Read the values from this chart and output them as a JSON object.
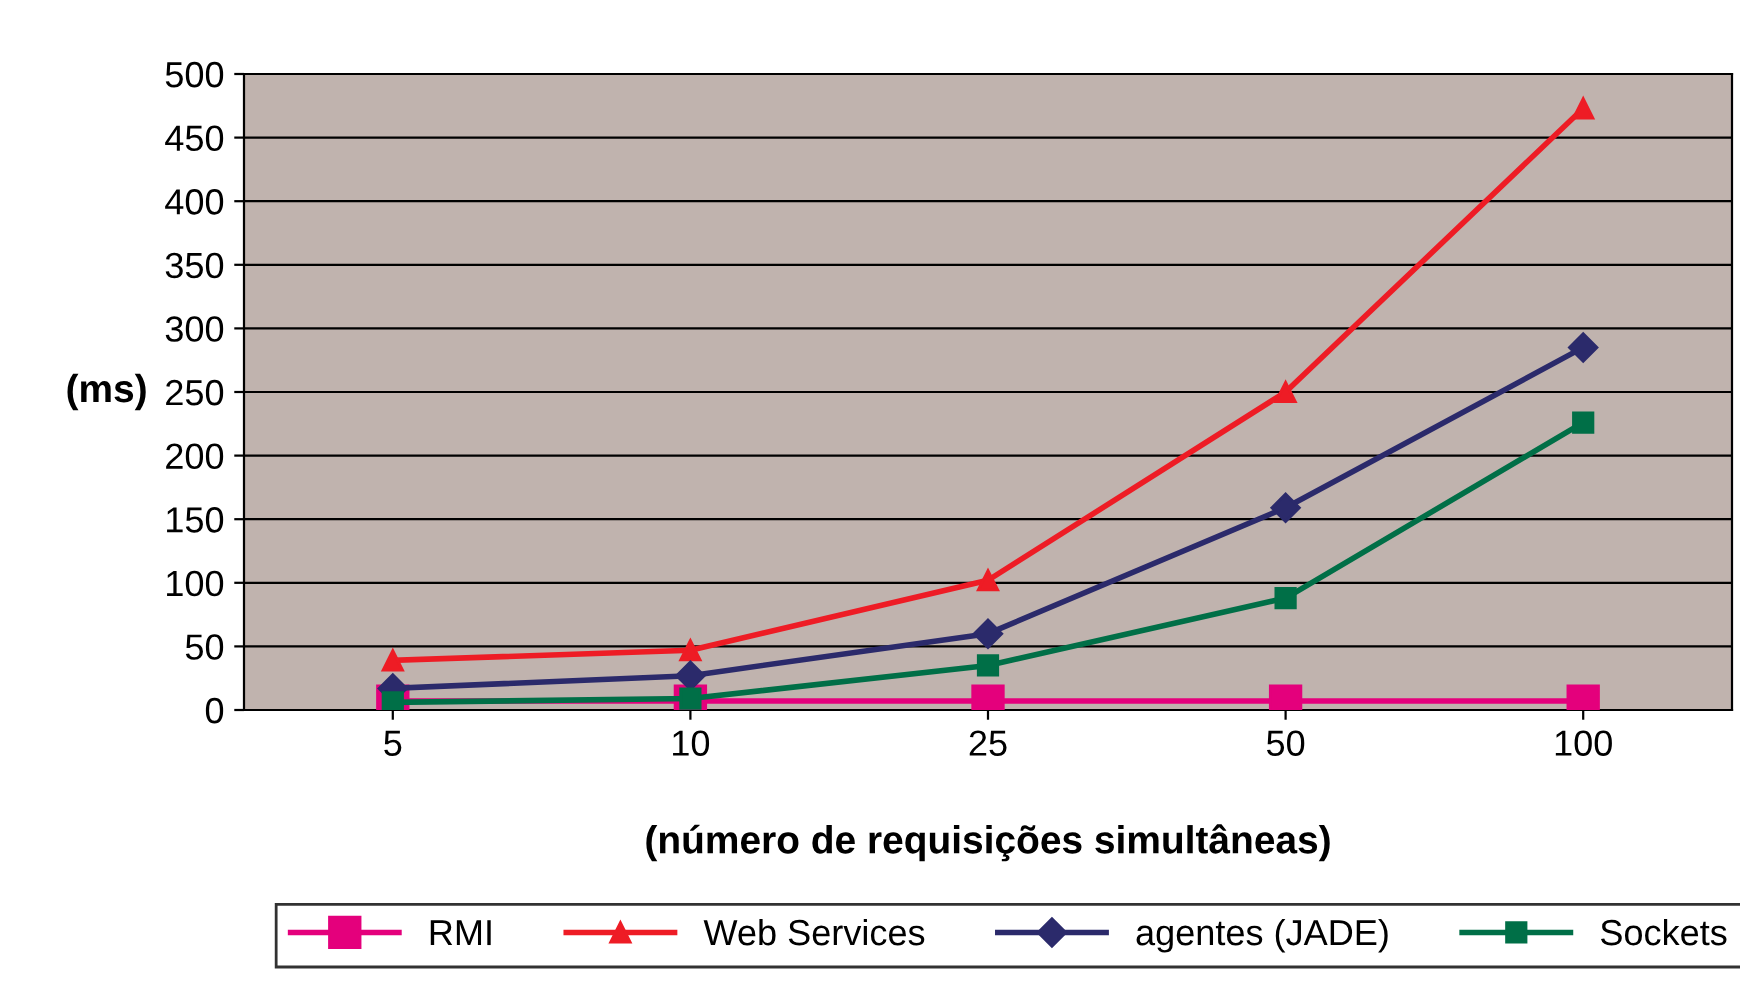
{
  "chart_data": {
    "type": "line",
    "xlabel": "(número de requisições simultâneas)",
    "ylabel": "(ms)",
    "categories": [
      "5",
      "10",
      "25",
      "50",
      "100"
    ],
    "series": [
      {
        "name": "RMI",
        "color": "#e4007c",
        "marker": "square",
        "values": [
          7,
          7,
          7,
          7,
          7
        ]
      },
      {
        "name": "Web Services",
        "color": "#ee1c25",
        "marker": "triangle",
        "values": [
          39,
          47,
          102,
          250,
          473
        ]
      },
      {
        "name": "agentes (JADE)",
        "color": "#2b2a6b",
        "marker": "diamond",
        "values": [
          17,
          27,
          60,
          159,
          285
        ]
      },
      {
        "name": "Sockets",
        "color": "#006f47",
        "marker": "square",
        "values": [
          6,
          9,
          35,
          88,
          226
        ]
      }
    ],
    "ylim": [
      0,
      500
    ],
    "yticks": [
      0,
      50,
      100,
      150,
      200,
      250,
      300,
      350,
      400,
      450,
      500
    ],
    "grid": "y",
    "legend": "bottom",
    "line_style": "solid"
  }
}
